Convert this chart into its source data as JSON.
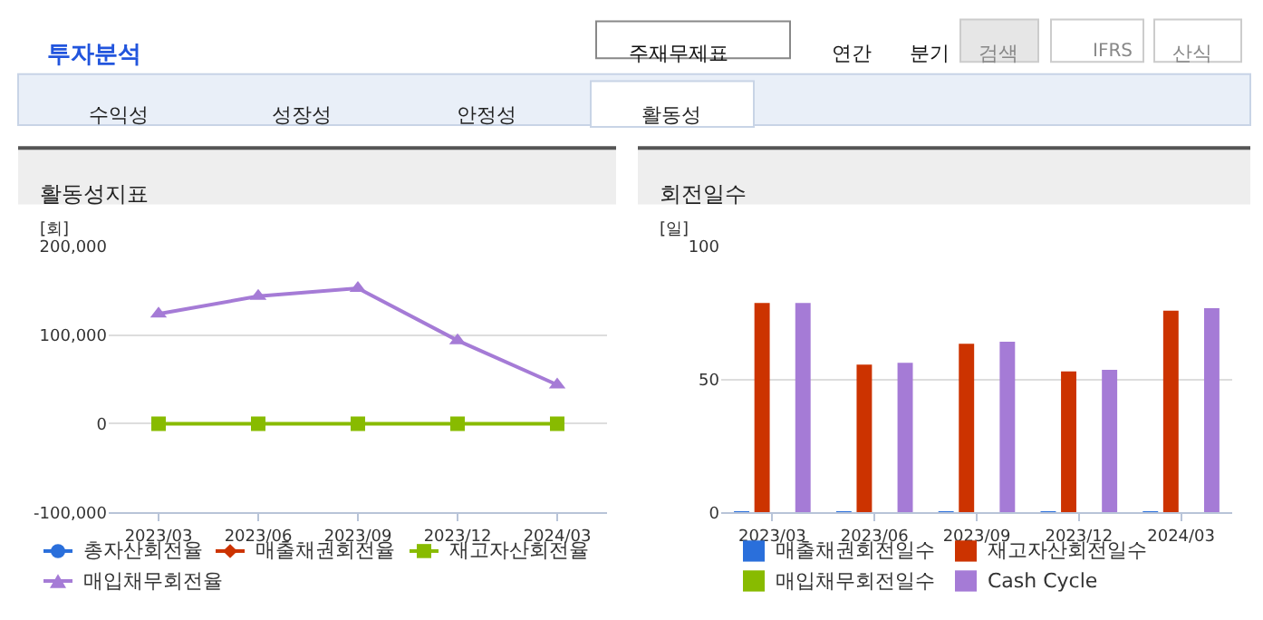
{
  "chart_data": [
    {
      "type": "line",
      "title": "활동성지표",
      "ylabel": "[회]",
      "categories": [
        "2023/03",
        "2023/06",
        "2023/09",
        "2023/12",
        "2024/03"
      ],
      "ylim": [
        -100000,
        200000
      ],
      "yticks": [
        {
          "value": -100000,
          "label": "-100,000"
        },
        {
          "value": 0,
          "label": "0"
        },
        {
          "value": 100000,
          "label": "100,000"
        },
        {
          "value": 200000,
          "label": "200,000"
        }
      ],
      "grid": "y",
      "legend": "bottom",
      "annotations": [
        "투자분석",
        "주재무제표",
        "연간",
        "분기",
        "검색",
        "IFRS",
        "산식",
        "수익성",
        "성장성",
        "안정성",
        "활동성"
      ],
      "series": [
        {
          "name": "총자산회전율",
          "color": "#2a6fdb",
          "marker": "circle",
          "values": [
            null,
            null,
            null,
            null,
            null
          ]
        },
        {
          "name": "매출채권회전율",
          "color": "#cc3300",
          "marker": "diamond",
          "values": [
            null,
            null,
            null,
            null,
            null
          ]
        },
        {
          "name": "재고자산회전율",
          "color": "#88bb00",
          "marker": "square",
          "values": [
            0,
            0,
            0,
            0,
            0
          ]
        },
        {
          "name": "매입채무회전율",
          "color": "#a57bd6",
          "marker": "triangle",
          "values": [
            124000,
            144000,
            153000,
            94000,
            44000
          ]
        }
      ]
    },
    {
      "type": "bar",
      "title": "회전일수",
      "ylabel": "[일]",
      "categories": [
        "2023/03",
        "2023/06",
        "2023/09",
        "2023/12",
        "2024/03"
      ],
      "ylim": [
        0,
        100
      ],
      "yticks": [
        0,
        50,
        100
      ],
      "grid": "y",
      "legend": "bottom",
      "series": [
        {
          "name": "매출채권회전일수",
          "color": "#2a6fdb",
          "values": [
            0.3,
            0.3,
            0.3,
            0.3,
            0.3
          ]
        },
        {
          "name": "재고자산회전일수",
          "color": "#cc3300",
          "values": [
            78.8,
            55.6,
            63.4,
            53.0,
            75.9
          ]
        },
        {
          "name": "매입채무회전일수",
          "color": "#88bb00",
          "values": [
            0,
            0,
            0,
            0,
            0
          ]
        },
        {
          "name": "Cash Cycle",
          "color": "#a57bd6",
          "values": [
            78.8,
            56.3,
            64.2,
            53.6,
            76.8
          ]
        }
      ]
    }
  ]
}
